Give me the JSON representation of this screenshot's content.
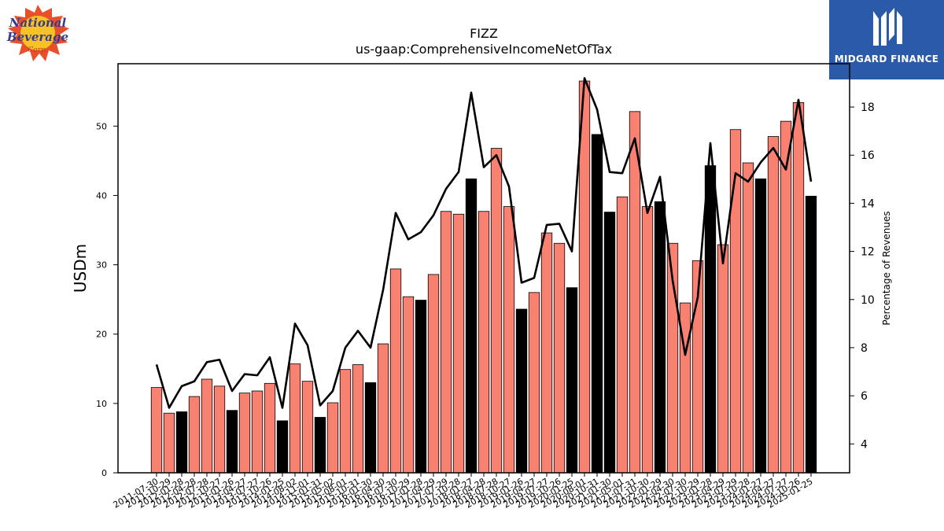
{
  "logos": {
    "left_text": "National Beverage Corp.",
    "right_text": "MIDGARD FINANCE"
  },
  "chart_data": {
    "type": "bar",
    "title": "FIZZ",
    "subtitle": "us-gaap:ComprehensiveIncomeNetOfTax",
    "ylabel": "USDm",
    "y2label": "Percentage of Revenues",
    "ylim": [
      0,
      59
    ],
    "y2lim": [
      2.8,
      19.8
    ],
    "yticks": [
      0,
      10,
      20,
      30,
      40,
      50
    ],
    "y2ticks": [
      4,
      6,
      8,
      10,
      12,
      14,
      16,
      18
    ],
    "colors": {
      "bar": "#fa8072",
      "bar_highlight": "#000000",
      "line": "#000000"
    },
    "categories": [
      "2011-07-30",
      "2011-10-29",
      "2012-01-28",
      "2012-04-28",
      "2012-07-28",
      "2012-10-27",
      "2013-01-26",
      "2013-04-27",
      "2013-07-27",
      "2013-10-26",
      "2014-01-25",
      "2014-08-02",
      "2014-11-01",
      "2015-01-31",
      "2015-05-02",
      "2015-08-01",
      "2015-10-31",
      "2016-01-30",
      "2016-04-30",
      "2016-07-30",
      "2016-10-29",
      "2017-01-28",
      "2017-04-29",
      "2017-07-29",
      "2017-10-28",
      "2018-01-27",
      "2018-04-28",
      "2018-07-28",
      "2018-10-27",
      "2019-01-26",
      "2019-04-27",
      "2019-07-27",
      "2019-10-26",
      "2020-01-25",
      "2020-08-01",
      "2020-10-31",
      "2021-01-30",
      "2021-05-01",
      "2021-07-31",
      "2021-10-30",
      "2022-01-29",
      "2022-04-30",
      "2022-07-30",
      "2022-10-29",
      "2023-01-28",
      "2023-04-29",
      "2023-07-29",
      "2023-10-28",
      "2024-01-27",
      "2024-04-27",
      "2024-07-27",
      "2024-10-26",
      "2025-01-25"
    ],
    "visible_tick_labels": [
      "2011-07-30",
      "2011-10-29",
      "2012-01-28",
      "2012-04-28",
      "2012-07-28",
      "2012-10-27",
      "2013-01-26",
      "2013-04-27",
      "2013-07-27",
      "2013-10-26",
      "2014-01-25",
      "2014-08-02",
      "2014-11-01",
      "2015-01-31",
      "2015-05-02",
      "2015-08-01",
      "2015-10-31",
      "2016-01-30",
      "2016-04-30",
      "2016-07-30",
      "2016-10-29",
      "2017-01-28",
      "2017-04-29",
      "2017-07-29",
      "2017-10-28",
      "2018-01-27",
      "2018-04-28",
      "2018-07-28",
      "2018-10-27",
      "2019-01-26",
      "2019-04-27",
      "2019-07-27",
      "2019-10-26",
      "2020-01-25",
      "2020-08-01",
      "2020-10-31",
      "2021-01-30",
      "2021-05-01",
      "2021-07-31",
      "2021-10-30",
      "2022-01-29",
      "2022-04-30",
      "2022-07-30",
      "2022-10-29",
      "2023-01-28",
      "2023-04-29",
      "2023-07-29",
      "2023-10-28",
      "2024-01-27",
      "2024-04-27",
      "2024-07-27",
      "2024-10-26",
      "2025-01-25"
    ],
    "series": [
      {
        "kind": "bar",
        "axis": "left",
        "values": [
          12.3,
          8.6,
          8.8,
          11.0,
          13.5,
          12.5,
          9.0,
          11.5,
          11.8,
          12.9,
          7.5,
          15.7,
          13.2,
          8.0,
          10.1,
          14.9,
          15.6,
          13.0,
          18.6,
          29.4,
          25.4,
          24.9,
          28.6,
          37.7,
          37.3,
          42.4,
          37.7,
          46.8,
          38.4,
          23.6,
          26.0,
          34.6,
          33.1,
          26.7,
          56.5,
          48.8,
          37.6,
          39.8,
          52.1,
          38.4,
          39.1,
          33.1,
          24.5,
          30.6,
          44.3,
          32.9,
          49.5,
          44.7,
          42.4,
          48.5,
          50.7,
          53.4,
          39.9
        ],
        "highlight": [
          false,
          false,
          true,
          false,
          false,
          false,
          true,
          false,
          false,
          false,
          true,
          false,
          false,
          true,
          false,
          false,
          false,
          true,
          false,
          false,
          false,
          true,
          false,
          false,
          false,
          true,
          false,
          false,
          false,
          true,
          false,
          false,
          false,
          true,
          false,
          true,
          true,
          false,
          false,
          false,
          true,
          false,
          false,
          false,
          true,
          false,
          false,
          false,
          true,
          false,
          false,
          false,
          true
        ]
      },
      {
        "kind": "line",
        "axis": "right",
        "values": [
          7.3,
          5.5,
          6.4,
          6.6,
          7.4,
          7.5,
          6.2,
          6.9,
          6.85,
          7.6,
          5.5,
          9.0,
          8.1,
          5.6,
          6.2,
          8.0,
          8.7,
          8.0,
          10.4,
          13.6,
          12.5,
          12.8,
          13.5,
          14.6,
          15.3,
          18.6,
          15.5,
          16.0,
          14.7,
          10.7,
          10.9,
          13.1,
          13.15,
          12.0,
          19.2,
          17.9,
          15.3,
          15.25,
          16.7,
          13.6,
          15.1,
          10.8,
          7.7,
          10.1,
          16.5,
          11.5,
          15.25,
          14.9,
          15.7,
          16.3,
          15.4,
          18.3,
          14.9
        ]
      }
    ]
  }
}
